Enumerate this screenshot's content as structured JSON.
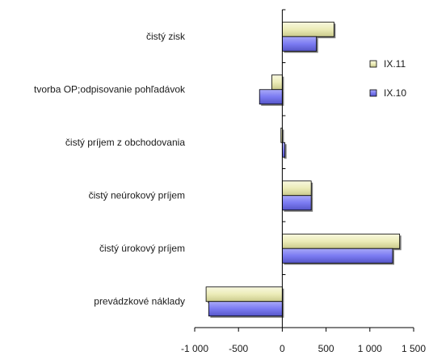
{
  "chart_data": {
    "type": "bar",
    "orientation": "horizontal",
    "categories": [
      "čistý zisk",
      "tvorba OP;odpisovanie pohľadávok",
      "čistý príjem z obchodovania",
      "čistý neúrokový príjem",
      "čistý úrokový príjem",
      "prevádzkové náklady"
    ],
    "series": [
      {
        "name": "IX.11",
        "values": [
          590,
          -120,
          -15,
          330,
          1340,
          -870
        ],
        "color": "#ECECB8"
      },
      {
        "name": "IX.10",
        "values": [
          390,
          -260,
          30,
          330,
          1260,
          -840
        ],
        "color": "#7B7BF2"
      }
    ],
    "xlim": [
      -1000,
      1500
    ],
    "xticks": [
      -1000,
      -500,
      0,
      500,
      1000,
      1500
    ],
    "xtick_labels": [
      "-1 000",
      "-500",
      "0",
      "500",
      "1 000",
      "1 500"
    ],
    "grid": false,
    "legend": "right"
  }
}
